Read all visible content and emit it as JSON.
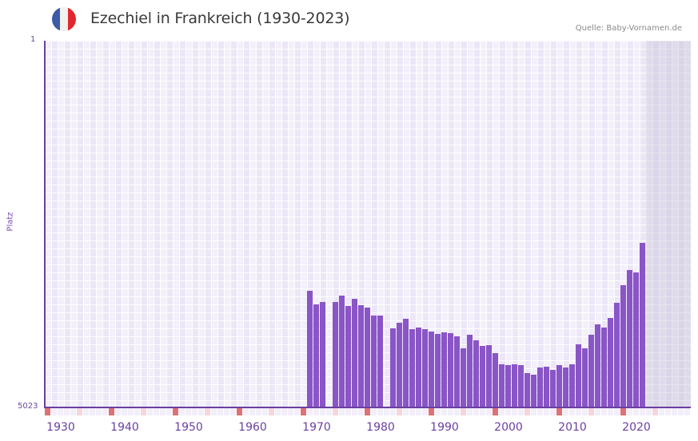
{
  "header": {
    "title": "Ezechiel in Frankreich (1930-2023)",
    "source": "Quelle: Baby-Vornamen.de",
    "flag": {
      "icon": "france-flag-icon",
      "colors": [
        "#3c5aa6",
        "#f1f1f1",
        "#e2262e"
      ]
    }
  },
  "axes": {
    "y_label": "Platz",
    "y_top_tick": "1",
    "y_bottom_tick": "5023",
    "x_ticks": [
      "1930",
      "1940",
      "1950",
      "1960",
      "1970",
      "1980",
      "1990",
      "2000",
      "2010",
      "2020"
    ]
  },
  "colors": {
    "bar": "#8a55c6",
    "axis": "#6a3fa0",
    "marker_decade": "#e07078",
    "marker_half": "#f5d6dd"
  },
  "chart_data": {
    "type": "bar",
    "title": "Ezechiel in Frankreich (1930-2023)",
    "xlabel": "",
    "ylabel": "Platz",
    "ylim": [
      5023,
      1
    ],
    "y_inverted": true,
    "x_range": [
      1929,
      2028
    ],
    "future_shaded_from": 2023,
    "grid": true,
    "legend": null,
    "categories": [
      1970,
      1971,
      1972,
      1973,
      1974,
      1975,
      1976,
      1977,
      1978,
      1979,
      1980,
      1981,
      1982,
      1983,
      1984,
      1985,
      1986,
      1987,
      1988,
      1989,
      1990,
      1991,
      1992,
      1993,
      1994,
      1995,
      1996,
      1997,
      1998,
      1999,
      2000,
      2001,
      2002,
      2003,
      2004,
      2005,
      2006,
      2007,
      2008,
      2009,
      2010,
      2011,
      2012,
      2013,
      2014,
      2015,
      2016,
      2017,
      2018,
      2019,
      2020,
      2021,
      2022
    ],
    "values": [
      3425,
      3611,
      3578,
      null,
      3578,
      3490,
      3633,
      3534,
      3622,
      3655,
      3764,
      3764,
      null,
      3940,
      3863,
      3808,
      3951,
      3929,
      3951,
      3983,
      4016,
      3994,
      4005,
      4049,
      4213,
      4027,
      4104,
      4180,
      4169,
      4279,
      4432,
      4443,
      4432,
      4443,
      4552,
      4574,
      4476,
      4465,
      4508,
      4443,
      4476,
      4432,
      4158,
      4213,
      4027,
      3885,
      3929,
      3797,
      3589,
      3349,
      3141,
      3174,
      2769
    ],
    "source": "Quelle: Baby-Vornamen.de"
  }
}
